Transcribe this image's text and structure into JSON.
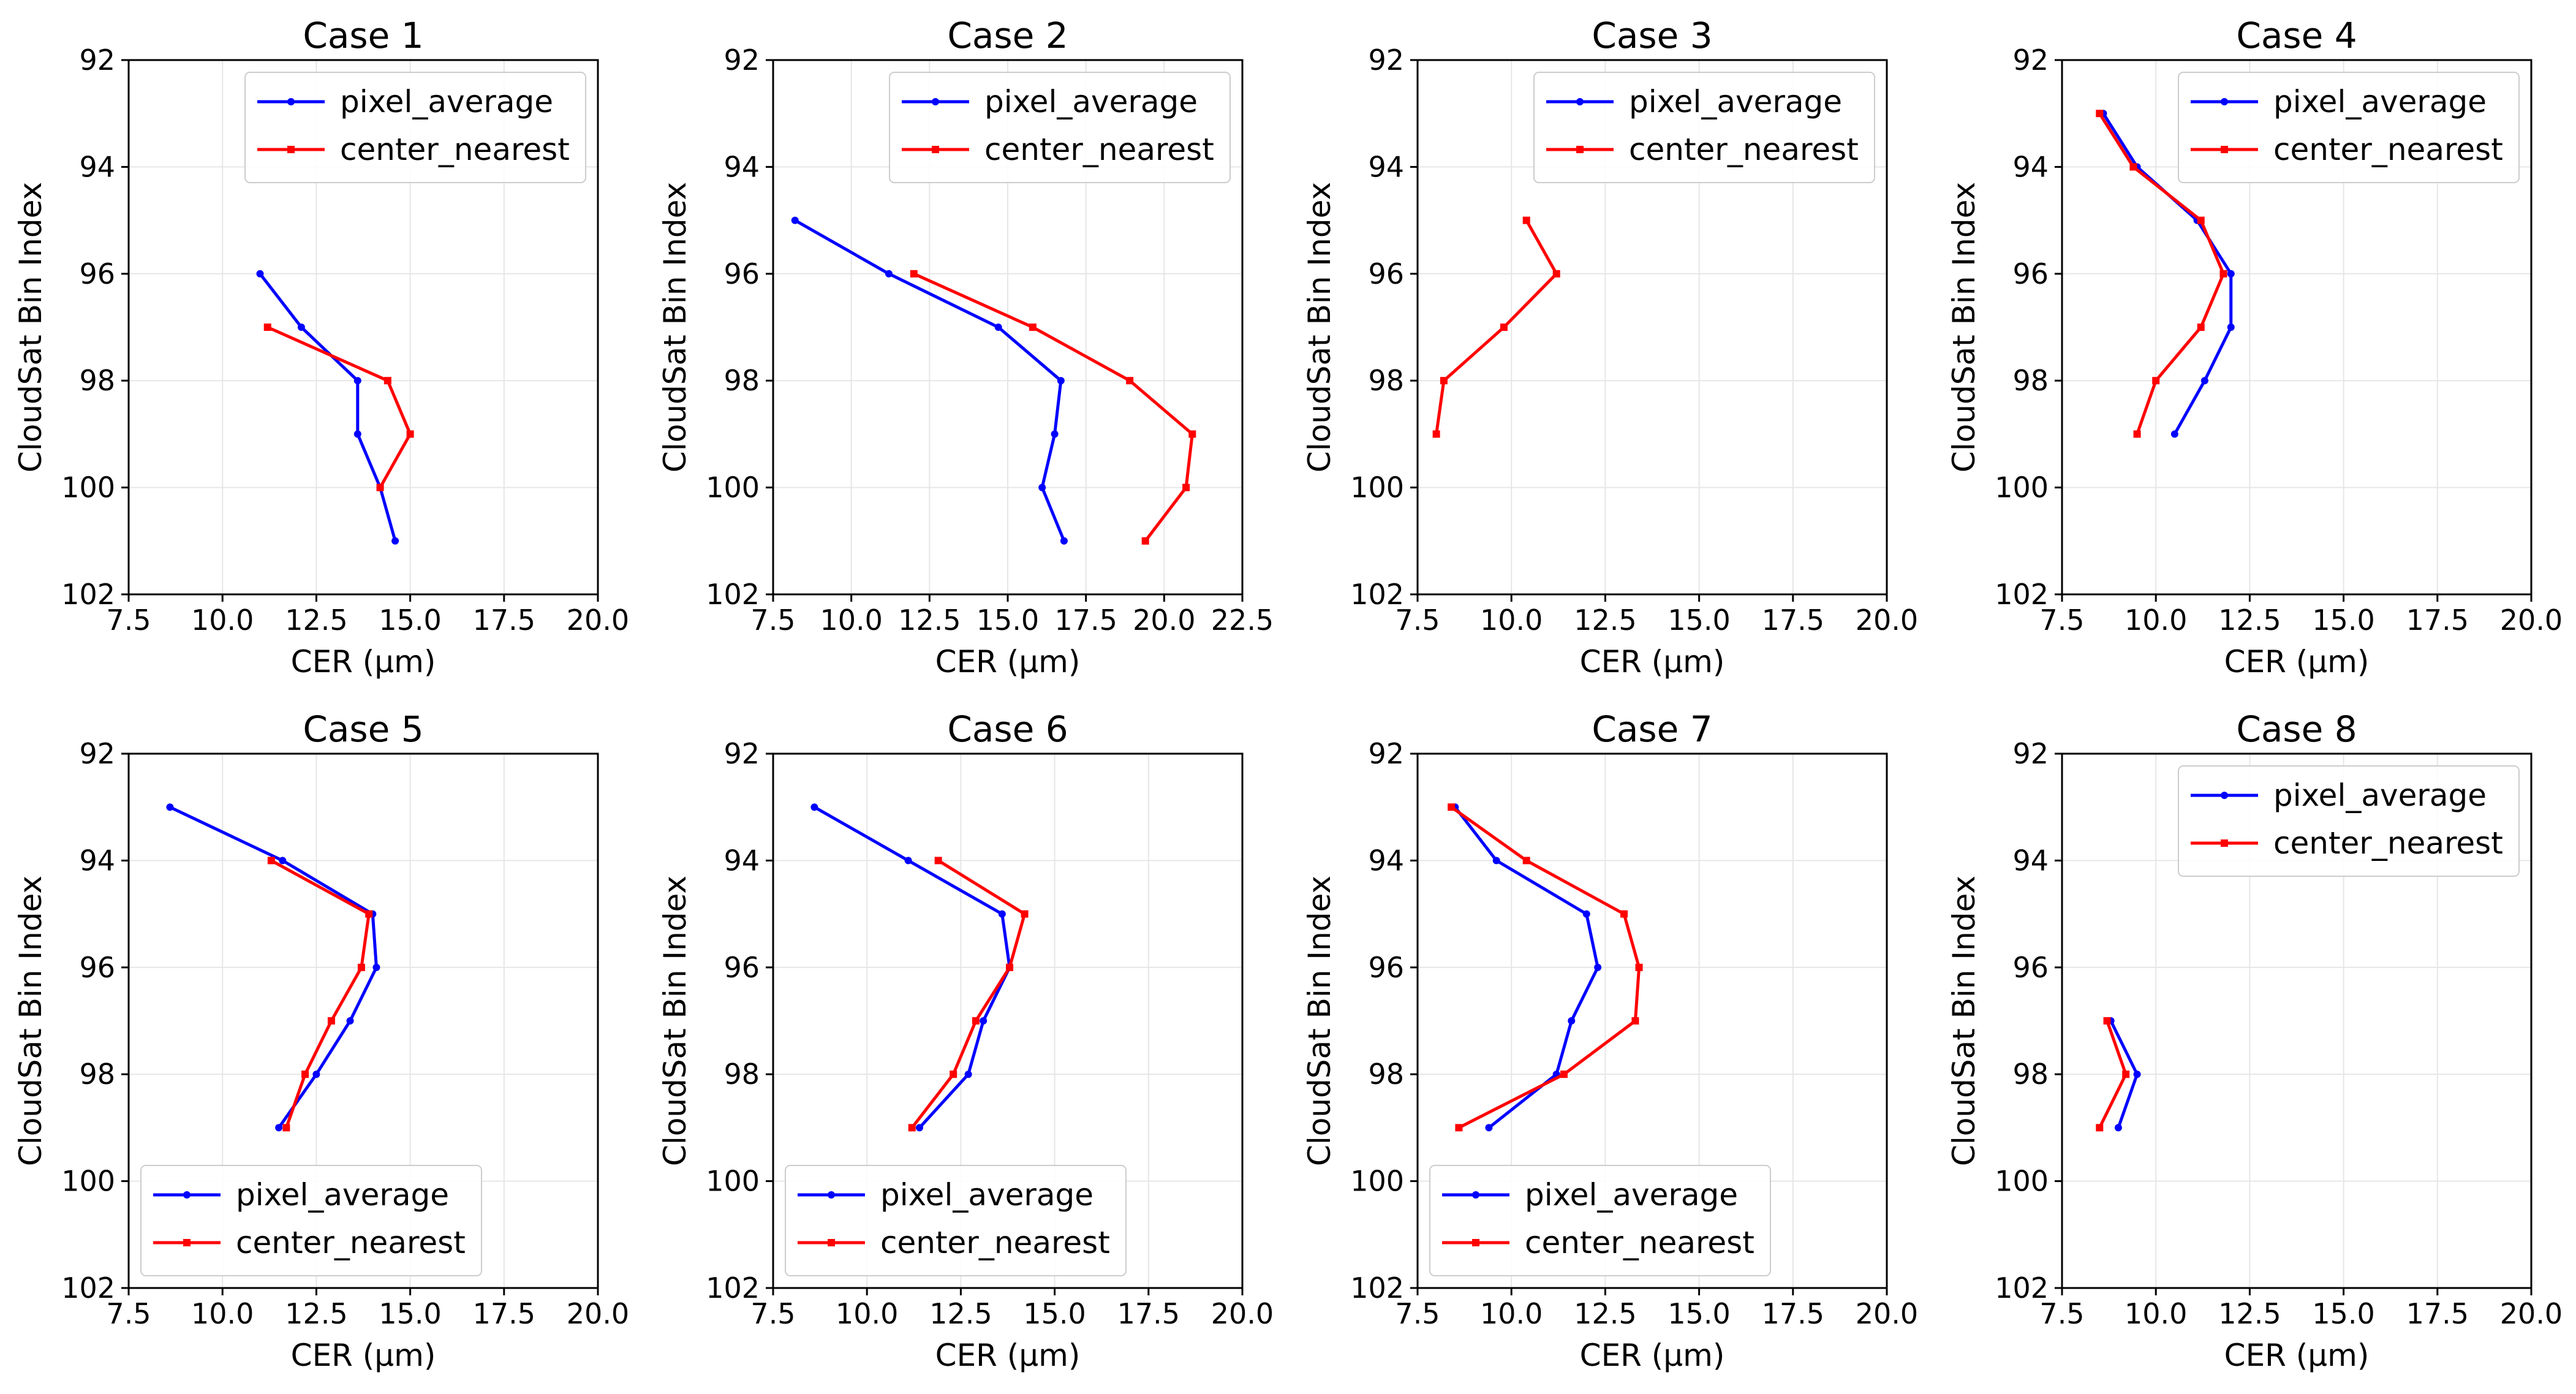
{
  "colors": {
    "pixel_average": "#0000ff",
    "center_nearest": "#ff0000",
    "grid": "#e6e6e6",
    "axes": "#000000",
    "legend_border": "#cccccc"
  },
  "chart_data": [
    {
      "type": "line",
      "title": "Case 1",
      "xlabel": "CER (μm)",
      "ylabel": "CloudSat Bin Index",
      "xlim": [
        7.5,
        20.0
      ],
      "ylim": [
        102,
        92
      ],
      "y_inverted": true,
      "xticks": [
        "7.5",
        "10.0",
        "12.5",
        "15.0",
        "17.5",
        "20.0"
      ],
      "yticks": [
        "92",
        "94",
        "96",
        "98",
        "100",
        "102"
      ],
      "grid": true,
      "legend_position": "upper right",
      "series": [
        {
          "name": "pixel_average",
          "color": "#0000ff",
          "x": [
            11.0,
            12.1,
            13.6,
            13.6,
            14.2,
            14.6
          ],
          "y": [
            96,
            97,
            98,
            99,
            100,
            101
          ]
        },
        {
          "name": "center_nearest",
          "color": "#ff0000",
          "x": [
            11.2,
            14.4,
            15.0,
            14.2
          ],
          "y": [
            97,
            98,
            99,
            100
          ]
        }
      ]
    },
    {
      "type": "line",
      "title": "Case 2",
      "xlabel": "CER (μm)",
      "ylabel": "CloudSat Bin Index",
      "xlim": [
        7.5,
        22.5
      ],
      "ylim": [
        102,
        92
      ],
      "y_inverted": true,
      "xticks": [
        "7.5",
        "10.0",
        "12.5",
        "15.0",
        "17.5",
        "20.0",
        "22.5"
      ],
      "yticks": [
        "92",
        "94",
        "96",
        "98",
        "100",
        "102"
      ],
      "grid": true,
      "legend_position": "upper right",
      "series": [
        {
          "name": "pixel_average",
          "color": "#0000ff",
          "x": [
            8.2,
            11.2,
            14.7,
            16.7,
            16.5,
            16.1,
            16.8
          ],
          "y": [
            95,
            96,
            97,
            98,
            99,
            100,
            101
          ]
        },
        {
          "name": "center_nearest",
          "color": "#ff0000",
          "x": [
            12.0,
            15.8,
            18.9,
            20.9,
            20.7,
            19.4
          ],
          "y": [
            96,
            97,
            98,
            99,
            100,
            101
          ]
        }
      ]
    },
    {
      "type": "line",
      "title": "Case 3",
      "xlabel": "CER (μm)",
      "ylabel": "CloudSat Bin Index",
      "xlim": [
        7.5,
        20.0
      ],
      "ylim": [
        102,
        92
      ],
      "y_inverted": true,
      "xticks": [
        "7.5",
        "10.0",
        "12.5",
        "15.0",
        "17.5",
        "20.0"
      ],
      "yticks": [
        "92",
        "94",
        "96",
        "98",
        "100",
        "102"
      ],
      "grid": true,
      "legend_position": "upper right",
      "series": [
        {
          "name": "pixel_average",
          "color": "#0000ff",
          "x": [],
          "y": []
        },
        {
          "name": "center_nearest",
          "color": "#ff0000",
          "x": [
            10.4,
            11.2,
            9.8,
            8.2,
            8.0
          ],
          "y": [
            95,
            96,
            97,
            98,
            99
          ]
        }
      ]
    },
    {
      "type": "line",
      "title": "Case 4",
      "xlabel": "CER (μm)",
      "ylabel": "CloudSat Bin Index",
      "xlim": [
        7.5,
        20.0
      ],
      "ylim": [
        102,
        92
      ],
      "y_inverted": true,
      "xticks": [
        "7.5",
        "10.0",
        "12.5",
        "15.0",
        "17.5",
        "20.0"
      ],
      "yticks": [
        "92",
        "94",
        "96",
        "98",
        "100",
        "102"
      ],
      "grid": true,
      "legend_position": "upper right",
      "series": [
        {
          "name": "pixel_average",
          "color": "#0000ff",
          "x": [
            8.6,
            9.5,
            11.1,
            12.0,
            12.0,
            11.3,
            10.5
          ],
          "y": [
            93,
            94,
            95,
            96,
            97,
            98,
            99
          ]
        },
        {
          "name": "center_nearest",
          "color": "#ff0000",
          "x": [
            8.5,
            9.4,
            11.2,
            11.8,
            11.2,
            10.0,
            9.5
          ],
          "y": [
            93,
            94,
            95,
            96,
            97,
            98,
            99
          ]
        }
      ]
    },
    {
      "type": "line",
      "title": "Case 5",
      "xlabel": "CER (μm)",
      "ylabel": "CloudSat Bin Index",
      "xlim": [
        7.5,
        20.0
      ],
      "ylim": [
        102,
        92
      ],
      "y_inverted": true,
      "xticks": [
        "7.5",
        "10.0",
        "12.5",
        "15.0",
        "17.5",
        "20.0"
      ],
      "yticks": [
        "92",
        "94",
        "96",
        "98",
        "100",
        "102"
      ],
      "grid": true,
      "legend_position": "lower left",
      "series": [
        {
          "name": "pixel_average",
          "color": "#0000ff",
          "x": [
            8.6,
            11.6,
            14.0,
            14.1,
            13.4,
            12.5,
            11.5
          ],
          "y": [
            93,
            94,
            95,
            96,
            97,
            98,
            99
          ]
        },
        {
          "name": "center_nearest",
          "color": "#ff0000",
          "x": [
            11.3,
            13.9,
            13.7,
            12.9,
            12.2,
            11.7
          ],
          "y": [
            94,
            95,
            96,
            97,
            98,
            99
          ]
        }
      ]
    },
    {
      "type": "line",
      "title": "Case 6",
      "xlabel": "CER (μm)",
      "ylabel": "CloudSat Bin Index",
      "xlim": [
        7.5,
        20.0
      ],
      "ylim": [
        102,
        92
      ],
      "y_inverted": true,
      "xticks": [
        "7.5",
        "10.0",
        "12.5",
        "15.0",
        "17.5",
        "20.0"
      ],
      "yticks": [
        "92",
        "94",
        "96",
        "98",
        "100",
        "102"
      ],
      "grid": true,
      "legend_position": "lower left",
      "series": [
        {
          "name": "pixel_average",
          "color": "#0000ff",
          "x": [
            8.6,
            11.1,
            13.6,
            13.8,
            13.1,
            12.7,
            11.4
          ],
          "y": [
            93,
            94,
            95,
            96,
            97,
            98,
            99
          ]
        },
        {
          "name": "center_nearest",
          "color": "#ff0000",
          "x": [
            11.9,
            14.2,
            13.8,
            12.9,
            12.3,
            11.2
          ],
          "y": [
            94,
            95,
            96,
            97,
            98,
            99
          ]
        }
      ]
    },
    {
      "type": "line",
      "title": "Case 7",
      "xlabel": "CER (μm)",
      "ylabel": "CloudSat Bin Index",
      "xlim": [
        7.5,
        20.0
      ],
      "ylim": [
        102,
        92
      ],
      "y_inverted": true,
      "xticks": [
        "7.5",
        "10.0",
        "12.5",
        "15.0",
        "17.5",
        "20.0"
      ],
      "yticks": [
        "92",
        "94",
        "96",
        "98",
        "100",
        "102"
      ],
      "grid": true,
      "legend_position": "lower left",
      "series": [
        {
          "name": "pixel_average",
          "color": "#0000ff",
          "x": [
            8.5,
            9.6,
            12.0,
            12.3,
            11.6,
            11.2,
            9.4
          ],
          "y": [
            93,
            94,
            95,
            96,
            97,
            98,
            99
          ]
        },
        {
          "name": "center_nearest",
          "color": "#ff0000",
          "x": [
            8.4,
            10.4,
            13.0,
            13.4,
            13.3,
            11.4,
            8.6
          ],
          "y": [
            93,
            94,
            95,
            96,
            97,
            98,
            99
          ]
        }
      ]
    },
    {
      "type": "line",
      "title": "Case 8",
      "xlabel": "CER (μm)",
      "ylabel": "CloudSat Bin Index",
      "xlim": [
        7.5,
        20.0
      ],
      "ylim": [
        102,
        92
      ],
      "y_inverted": true,
      "xticks": [
        "7.5",
        "10.0",
        "12.5",
        "15.0",
        "17.5",
        "20.0"
      ],
      "yticks": [
        "92",
        "94",
        "96",
        "98",
        "100",
        "102"
      ],
      "grid": true,
      "legend_position": "upper right",
      "series": [
        {
          "name": "pixel_average",
          "color": "#0000ff",
          "x": [
            8.8,
            9.5,
            9.0
          ],
          "y": [
            97,
            98,
            99
          ]
        },
        {
          "name": "center_nearest",
          "color": "#ff0000",
          "x": [
            8.7,
            9.2,
            8.5
          ],
          "y": [
            97,
            98,
            99
          ]
        }
      ]
    }
  ]
}
